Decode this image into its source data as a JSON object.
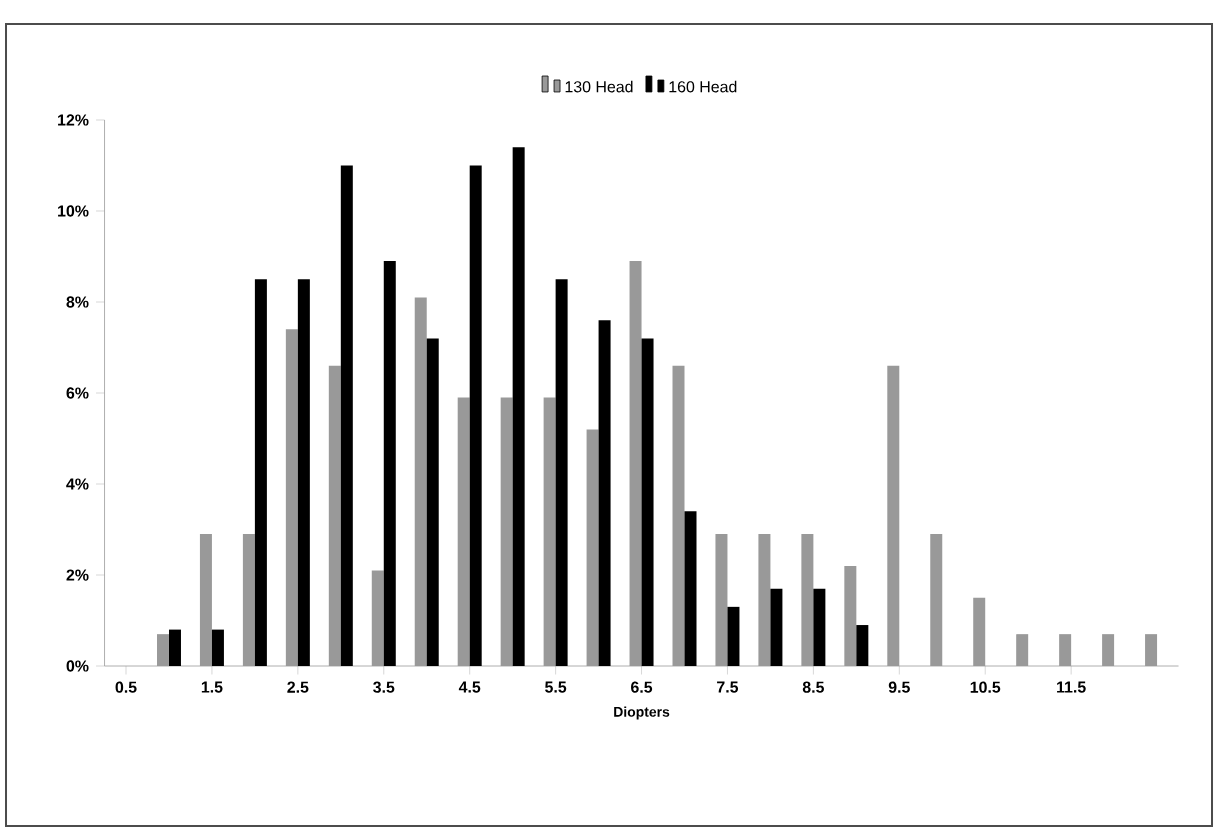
{
  "chart_data": {
    "type": "bar",
    "xlabel": "Diopters",
    "categories": [
      "0.5",
      null,
      "1.5",
      null,
      "2.5",
      null,
      "3.5",
      null,
      "4.5",
      null,
      "5.5",
      null,
      "6.5",
      null,
      "7.5",
      null,
      "8.5",
      null,
      "9.5",
      null,
      "10.5",
      null,
      "11.5",
      null,
      null
    ],
    "series": [
      {
        "name": "130 Head",
        "color": "#999999",
        "values": [
          null,
          0.7,
          2.9,
          2.9,
          7.4,
          6.6,
          2.1,
          8.1,
          5.9,
          5.9,
          5.9,
          5.2,
          8.9,
          6.6,
          2.9,
          2.9,
          2.9,
          2.2,
          6.6,
          2.9,
          1.5,
          0.7,
          0.7,
          0.7,
          0.7
        ]
      },
      {
        "name": "160 Head",
        "color": "#000000",
        "values": [
          null,
          0.8,
          0.8,
          8.5,
          8.5,
          11.0,
          8.9,
          7.2,
          11.0,
          11.4,
          8.5,
          7.6,
          7.2,
          3.4,
          1.3,
          1.7,
          1.7,
          0.9,
          null,
          null,
          null,
          null,
          null,
          null,
          null
        ]
      }
    ],
    "ylim": [
      0,
      12
    ],
    "yticks": [
      {
        "value": 0,
        "label": "0%"
      },
      {
        "value": 2,
        "label": "2%"
      },
      {
        "value": 4,
        "label": "4%"
      },
      {
        "value": 6,
        "label": "6%"
      },
      {
        "value": 8,
        "label": "8%"
      },
      {
        "value": 10,
        "label": "10%"
      },
      {
        "value": 12,
        "label": "12%"
      }
    ],
    "grid": false,
    "legend": "top"
  }
}
